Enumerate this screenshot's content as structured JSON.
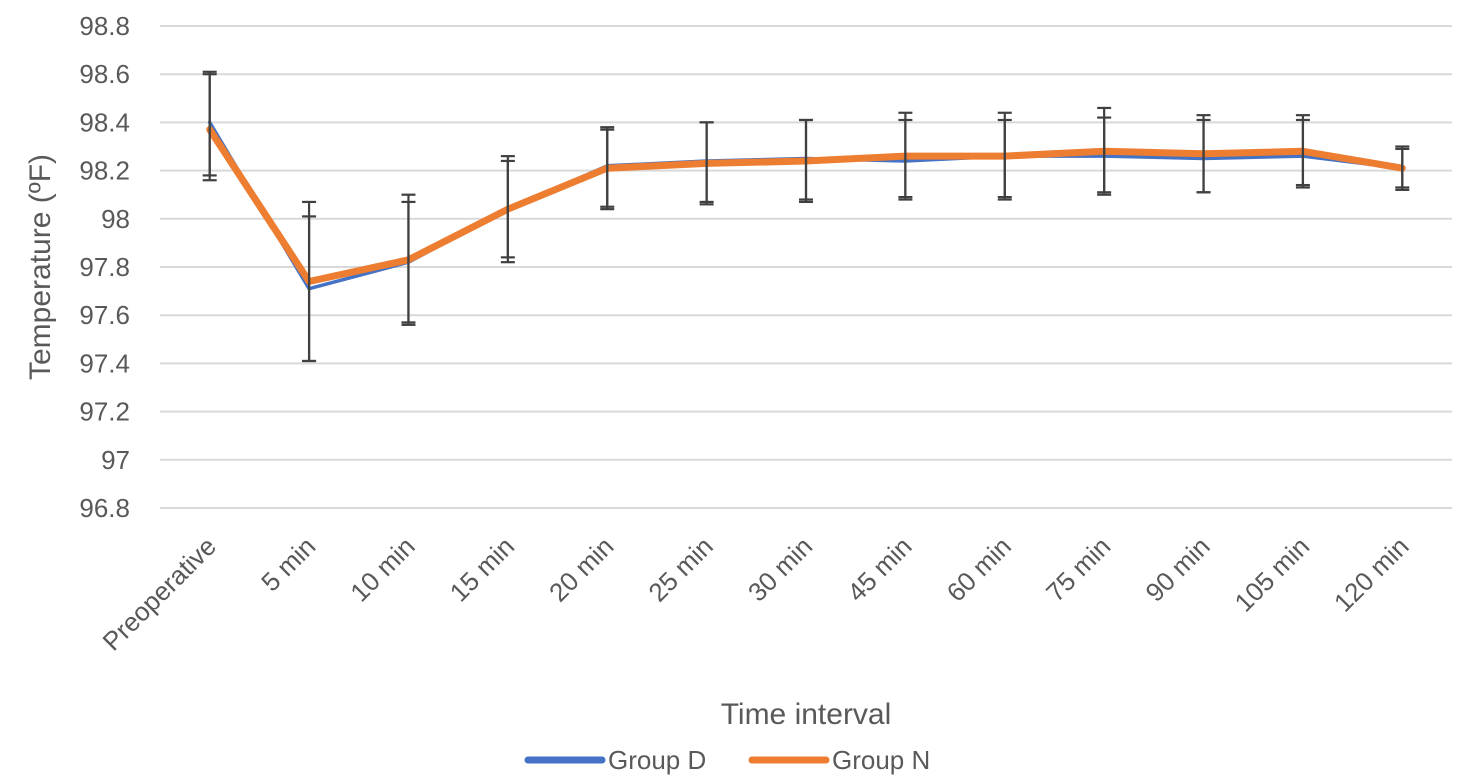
{
  "chart_data": {
    "type": "line",
    "title": "",
    "xlabel": "Time interval",
    "ylabel": "Temperature (ºF)",
    "ylim": [
      96.8,
      98.8
    ],
    "yticks": [
      96.8,
      97,
      97.2,
      97.4,
      97.6,
      97.8,
      98,
      98.2,
      98.4,
      98.6,
      98.8
    ],
    "ytick_labels": [
      "96.8",
      "97",
      "97.2",
      "97.4",
      "97.6",
      "97.8",
      "98",
      "98.2",
      "98.4",
      "98.6",
      "98.8"
    ],
    "categories": [
      "Preoperative",
      "5 min",
      "10 min",
      "15 min",
      "20 min",
      "25 min",
      "30 min",
      "45 min",
      "60 min",
      "75 min",
      "90 min",
      "105 min",
      "120 min"
    ],
    "grid": true,
    "legend": {
      "position": "bottom"
    },
    "series": [
      {
        "name": "Group D",
        "color": "#4472c4",
        "values": [
          98.4,
          97.71,
          97.82,
          98.04,
          98.22,
          98.24,
          98.25,
          98.24,
          98.26,
          98.26,
          98.25,
          98.26,
          98.21
        ],
        "err_high": [
          98.61,
          98.01,
          98.07,
          98.24,
          98.38,
          98.4,
          98.41,
          98.41,
          98.41,
          98.42,
          98.41,
          98.41,
          98.29
        ],
        "err_low": [
          98.18,
          97.41,
          97.56,
          97.84,
          98.05,
          98.07,
          98.07,
          98.08,
          98.08,
          98.1,
          98.11,
          98.13,
          98.12
        ]
      },
      {
        "name": "Group N",
        "color": "#ed7d31",
        "values": [
          98.37,
          97.74,
          97.83,
          98.04,
          98.21,
          98.23,
          98.24,
          98.26,
          98.26,
          98.28,
          98.27,
          98.28,
          98.21
        ],
        "err_high": [
          98.6,
          98.07,
          98.1,
          98.26,
          98.37,
          98.4,
          98.41,
          98.44,
          98.44,
          98.46,
          98.43,
          98.43,
          98.3
        ],
        "err_low": [
          98.16,
          97.41,
          97.57,
          97.82,
          98.04,
          98.06,
          98.08,
          98.09,
          98.09,
          98.11,
          98.11,
          98.14,
          98.13
        ]
      }
    ]
  }
}
